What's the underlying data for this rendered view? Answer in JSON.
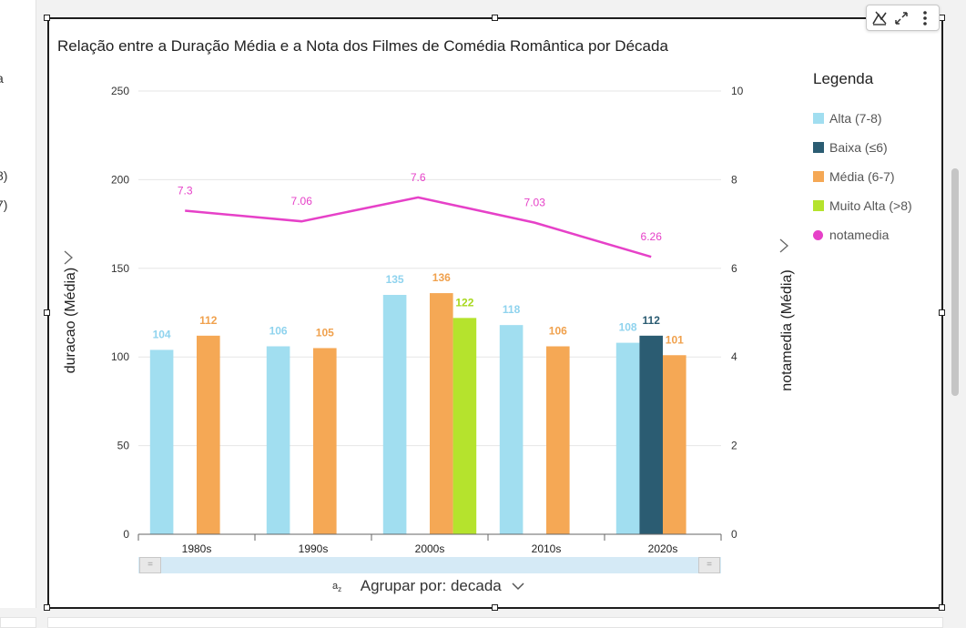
{
  "left_panel": {
    "fragments": [
      "a",
      "8)",
      "7)"
    ]
  },
  "visual": {
    "title": "Relação entre a Duração Média e a Nota dos Filmes de Comédia Romântica por Década",
    "group_by_label": "Agrupar por: decada",
    "toolbar_icons": [
      "analytics-icon",
      "expand-icon",
      "more-options-icon"
    ]
  },
  "legend": {
    "title": "Legenda",
    "items": [
      {
        "label": "Alta (7-8)",
        "color": "#a1def0"
      },
      {
        "label": "Baixa (≤6)",
        "color": "#2b5c72"
      },
      {
        "label": "Média (6-7)",
        "color": "#f5a855"
      },
      {
        "label": "Muito Alta (>8)",
        "color": "#b5e32d"
      },
      {
        "label": "notamedia",
        "color": "#e641c8"
      }
    ]
  },
  "chart_data": {
    "type": "bar",
    "categories": [
      "1980s",
      "1990s",
      "2000s",
      "2010s",
      "2020s"
    ],
    "ylabel": "duracao (Média)",
    "y2label": "notamedia (Média)",
    "ylim": [
      0,
      250
    ],
    "y2lim": [
      0,
      10
    ],
    "yticks": [
      0,
      50,
      100,
      150,
      200,
      250
    ],
    "y2ticks": [
      0,
      2,
      4,
      6,
      8,
      10
    ],
    "grid": true,
    "legend_position": "right",
    "series": [
      {
        "name": "Alta (7-8)",
        "color": "#a1def0",
        "label_color": "#8fd3ee",
        "values": [
          104,
          106,
          135,
          118,
          108
        ]
      },
      {
        "name": "Baixa (≤6)",
        "color": "#2b5c72",
        "label_color": "#2b5c72",
        "values": [
          null,
          null,
          null,
          null,
          112
        ]
      },
      {
        "name": "Média (6-7)",
        "color": "#f5a855",
        "label_color": "#f0a14d",
        "values": [
          112,
          105,
          136,
          106,
          101
        ]
      },
      {
        "name": "Muito Alta (>8)",
        "color": "#b5e32d",
        "label_color": "#a8d81e",
        "values": [
          null,
          null,
          122,
          null,
          null
        ]
      }
    ],
    "line_series": {
      "name": "notamedia",
      "axis": "right",
      "color": "#e641c8",
      "values": [
        7.3,
        7.06,
        7.6,
        7.03,
        6.26
      ]
    }
  }
}
